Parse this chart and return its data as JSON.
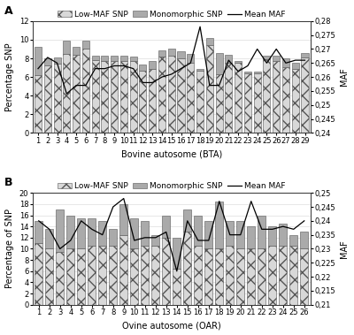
{
  "panel_A": {
    "categories": [
      1,
      2,
      3,
      4,
      5,
      6,
      7,
      8,
      9,
      10,
      11,
      12,
      13,
      14,
      15,
      16,
      17,
      18,
      19,
      20,
      21,
      22,
      23,
      24,
      25,
      26,
      27,
      28,
      29
    ],
    "low_maf": [
      6.2,
      7.2,
      7.4,
      8.5,
      8.4,
      9.0,
      7.8,
      7.7,
      7.7,
      7.7,
      7.7,
      6.7,
      6.9,
      8.2,
      8.3,
      8.0,
      7.5,
      6.7,
      9.4,
      6.3,
      7.5,
      7.5,
      6.4,
      6.4,
      7.9,
      7.7,
      7.1,
      6.9,
      8.1
    ],
    "mono_snp": [
      3.0,
      0.8,
      0.7,
      1.4,
      0.8,
      0.9,
      0.5,
      0.6,
      0.6,
      0.6,
      0.5,
      0.6,
      0.8,
      0.7,
      0.7,
      0.8,
      1.0,
      0.2,
      0.8,
      2.3,
      0.9,
      0.2,
      0.2,
      0.2,
      0.4,
      0.6,
      0.9,
      0.6,
      0.5
    ],
    "mean_maf": [
      0.263,
      0.267,
      0.265,
      0.254,
      0.257,
      0.257,
      0.263,
      0.263,
      0.264,
      0.264,
      0.263,
      0.258,
      0.258,
      0.26,
      0.261,
      0.263,
      0.265,
      0.278,
      0.257,
      0.257,
      0.266,
      0.262,
      0.264,
      0.27,
      0.265,
      0.27,
      0.265,
      0.266,
      0.266
    ],
    "xlabel": "Bovine autosome (BTA)",
    "ylabel": "Percentage SNP",
    "ylabel_right": "MAF",
    "ylim_left": [
      0,
      12
    ],
    "ylim_right": [
      0.24,
      0.28
    ],
    "yticks_left": [
      0,
      2,
      4,
      6,
      8,
      10,
      12
    ],
    "yticks_right": [
      0.24,
      0.245,
      0.25,
      0.255,
      0.26,
      0.265,
      0.27,
      0.275,
      0.28
    ],
    "ytick_right_labels": [
      "0,24",
      "0,245",
      "0,25",
      "0,255",
      "0,26",
      "0,265",
      "0,27",
      "0,275",
      "0,28"
    ],
    "panel_label": "A"
  },
  "panel_B": {
    "categories": [
      1,
      2,
      3,
      4,
      5,
      6,
      7,
      8,
      9,
      10,
      11,
      12,
      13,
      14,
      15,
      16,
      17,
      18,
      19,
      20,
      21,
      22,
      23,
      24,
      25,
      26
    ],
    "low_maf": [
      11.0,
      10.0,
      9.5,
      10.0,
      10.0,
      10.5,
      10.5,
      10.5,
      12.5,
      10.0,
      10.5,
      10.5,
      12.0,
      6.5,
      13.0,
      10.5,
      10.0,
      10.0,
      10.5,
      10.0,
      10.0,
      10.0,
      10.5,
      10.5,
      10.5,
      10.0
    ],
    "mono_snp": [
      4.0,
      3.5,
      7.5,
      6.0,
      5.5,
      5.0,
      4.5,
      3.0,
      5.5,
      5.5,
      4.5,
      2.0,
      4.0,
      5.5,
      4.0,
      5.5,
      5.0,
      8.5,
      4.5,
      5.0,
      4.0,
      6.0,
      3.5,
      4.0,
      2.0,
      3.0
    ],
    "mean_maf": [
      0.24,
      0.237,
      0.23,
      0.233,
      0.24,
      0.237,
      0.235,
      0.245,
      0.248,
      0.233,
      0.234,
      0.234,
      0.236,
      0.222,
      0.24,
      0.233,
      0.233,
      0.247,
      0.235,
      0.235,
      0.247,
      0.237,
      0.237,
      0.238,
      0.237,
      0.24
    ],
    "xlabel": "Ovine autosome (OAR)",
    "ylabel": "Percentage of SNP",
    "ylabel_right": "MAF",
    "ylim_left": [
      0,
      20
    ],
    "ylim_right": [
      0.21,
      0.25
    ],
    "yticks_left": [
      0,
      2,
      4,
      6,
      8,
      10,
      12,
      14,
      16,
      18,
      20
    ],
    "yticks_right": [
      0.21,
      0.215,
      0.22,
      0.225,
      0.23,
      0.235,
      0.24,
      0.245,
      0.25
    ],
    "ytick_right_labels": [
      "0,21",
      "0,215",
      "0,22",
      "0,225",
      "0,23",
      "0,235",
      "0,24",
      "0,245",
      "0,25"
    ],
    "panel_label": "B"
  },
  "hatch_facecolor": "#d8d8d8",
  "hatch_edgecolor": "#555555",
  "hatch_pattern": "xx",
  "mono_color": "#aaaaaa",
  "mono_edgecolor": "#555555",
  "line_color": "#000000",
  "bg_color": "#ffffff",
  "grid_color": "#dddddd",
  "legend_fontsize": 6.5,
  "tick_fontsize": 6.0,
  "label_fontsize": 7.0,
  "panel_label_fontsize": 9
}
